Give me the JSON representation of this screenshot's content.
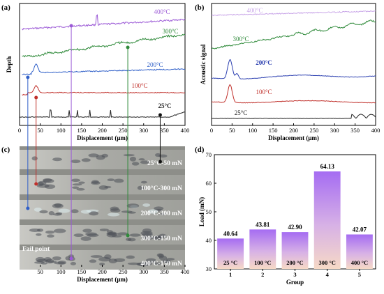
{
  "chart_data": [
    {
      "panel": "(a)",
      "type": "line",
      "ylabel": "Depth",
      "xlabel": "Displacement (μm)",
      "xlim": [
        0,
        400
      ],
      "xticks": [
        0,
        50,
        100,
        150,
        200,
        250,
        300,
        350,
        400
      ],
      "series": [
        {
          "name": "400°C",
          "color": "#9b59d6",
          "level": 5
        },
        {
          "name": "300°C",
          "color": "#2f8a3a",
          "level": 4
        },
        {
          "name": "200°C",
          "color": "#2f5fc8",
          "level": 3
        },
        {
          "name": "100°C",
          "color": "#c0302b",
          "level": 2
        },
        {
          "name": "25°C",
          "color": "#222222",
          "level": 1
        }
      ]
    },
    {
      "panel": "(b)",
      "type": "line",
      "ylabel": "Acoustic signal",
      "xlabel": "Displacement (μm)",
      "xlim": [
        0,
        400
      ],
      "xticks": [
        0,
        50,
        100,
        150,
        200,
        250,
        300,
        350,
        400
      ],
      "series": [
        {
          "name": "400°C",
          "color": "#c9a6e8"
        },
        {
          "name": "300°C",
          "color": "#2f8a3a"
        },
        {
          "name": "200°C",
          "color": "#2b3fb0"
        },
        {
          "name": "100°C",
          "color": "#c0302b"
        },
        {
          "name": "25°C",
          "color": "#222222"
        }
      ]
    },
    {
      "panel": "(c)",
      "type": "table",
      "xlabel": "Displacement (μm)",
      "xticks": [
        50,
        100,
        150,
        200,
        250,
        300,
        350,
        400
      ],
      "strips": [
        "25°C-50 mN",
        "100°C-300 mN",
        "200°C-300 mN",
        "300°C-150 mN",
        "400°C-150 mN"
      ],
      "annotation": "Fail point"
    },
    {
      "panel": "(d)",
      "type": "bar",
      "xlabel": "Group",
      "ylabel": "Load (mN)",
      "ylim": [
        30,
        70
      ],
      "yticks": [
        30,
        40,
        50,
        60,
        70
      ],
      "categories": [
        "1",
        "2",
        "3",
        "4",
        "5"
      ],
      "values": [
        40.64,
        43.81,
        42.9,
        64.13,
        42.07
      ],
      "value_labels": [
        "40.64",
        "43.81",
        "42.90",
        "64.13",
        "42.07"
      ],
      "bar_labels": [
        "25 °C",
        "100 °C",
        "200 °C",
        "300 °C",
        "400 °C"
      ]
    }
  ]
}
